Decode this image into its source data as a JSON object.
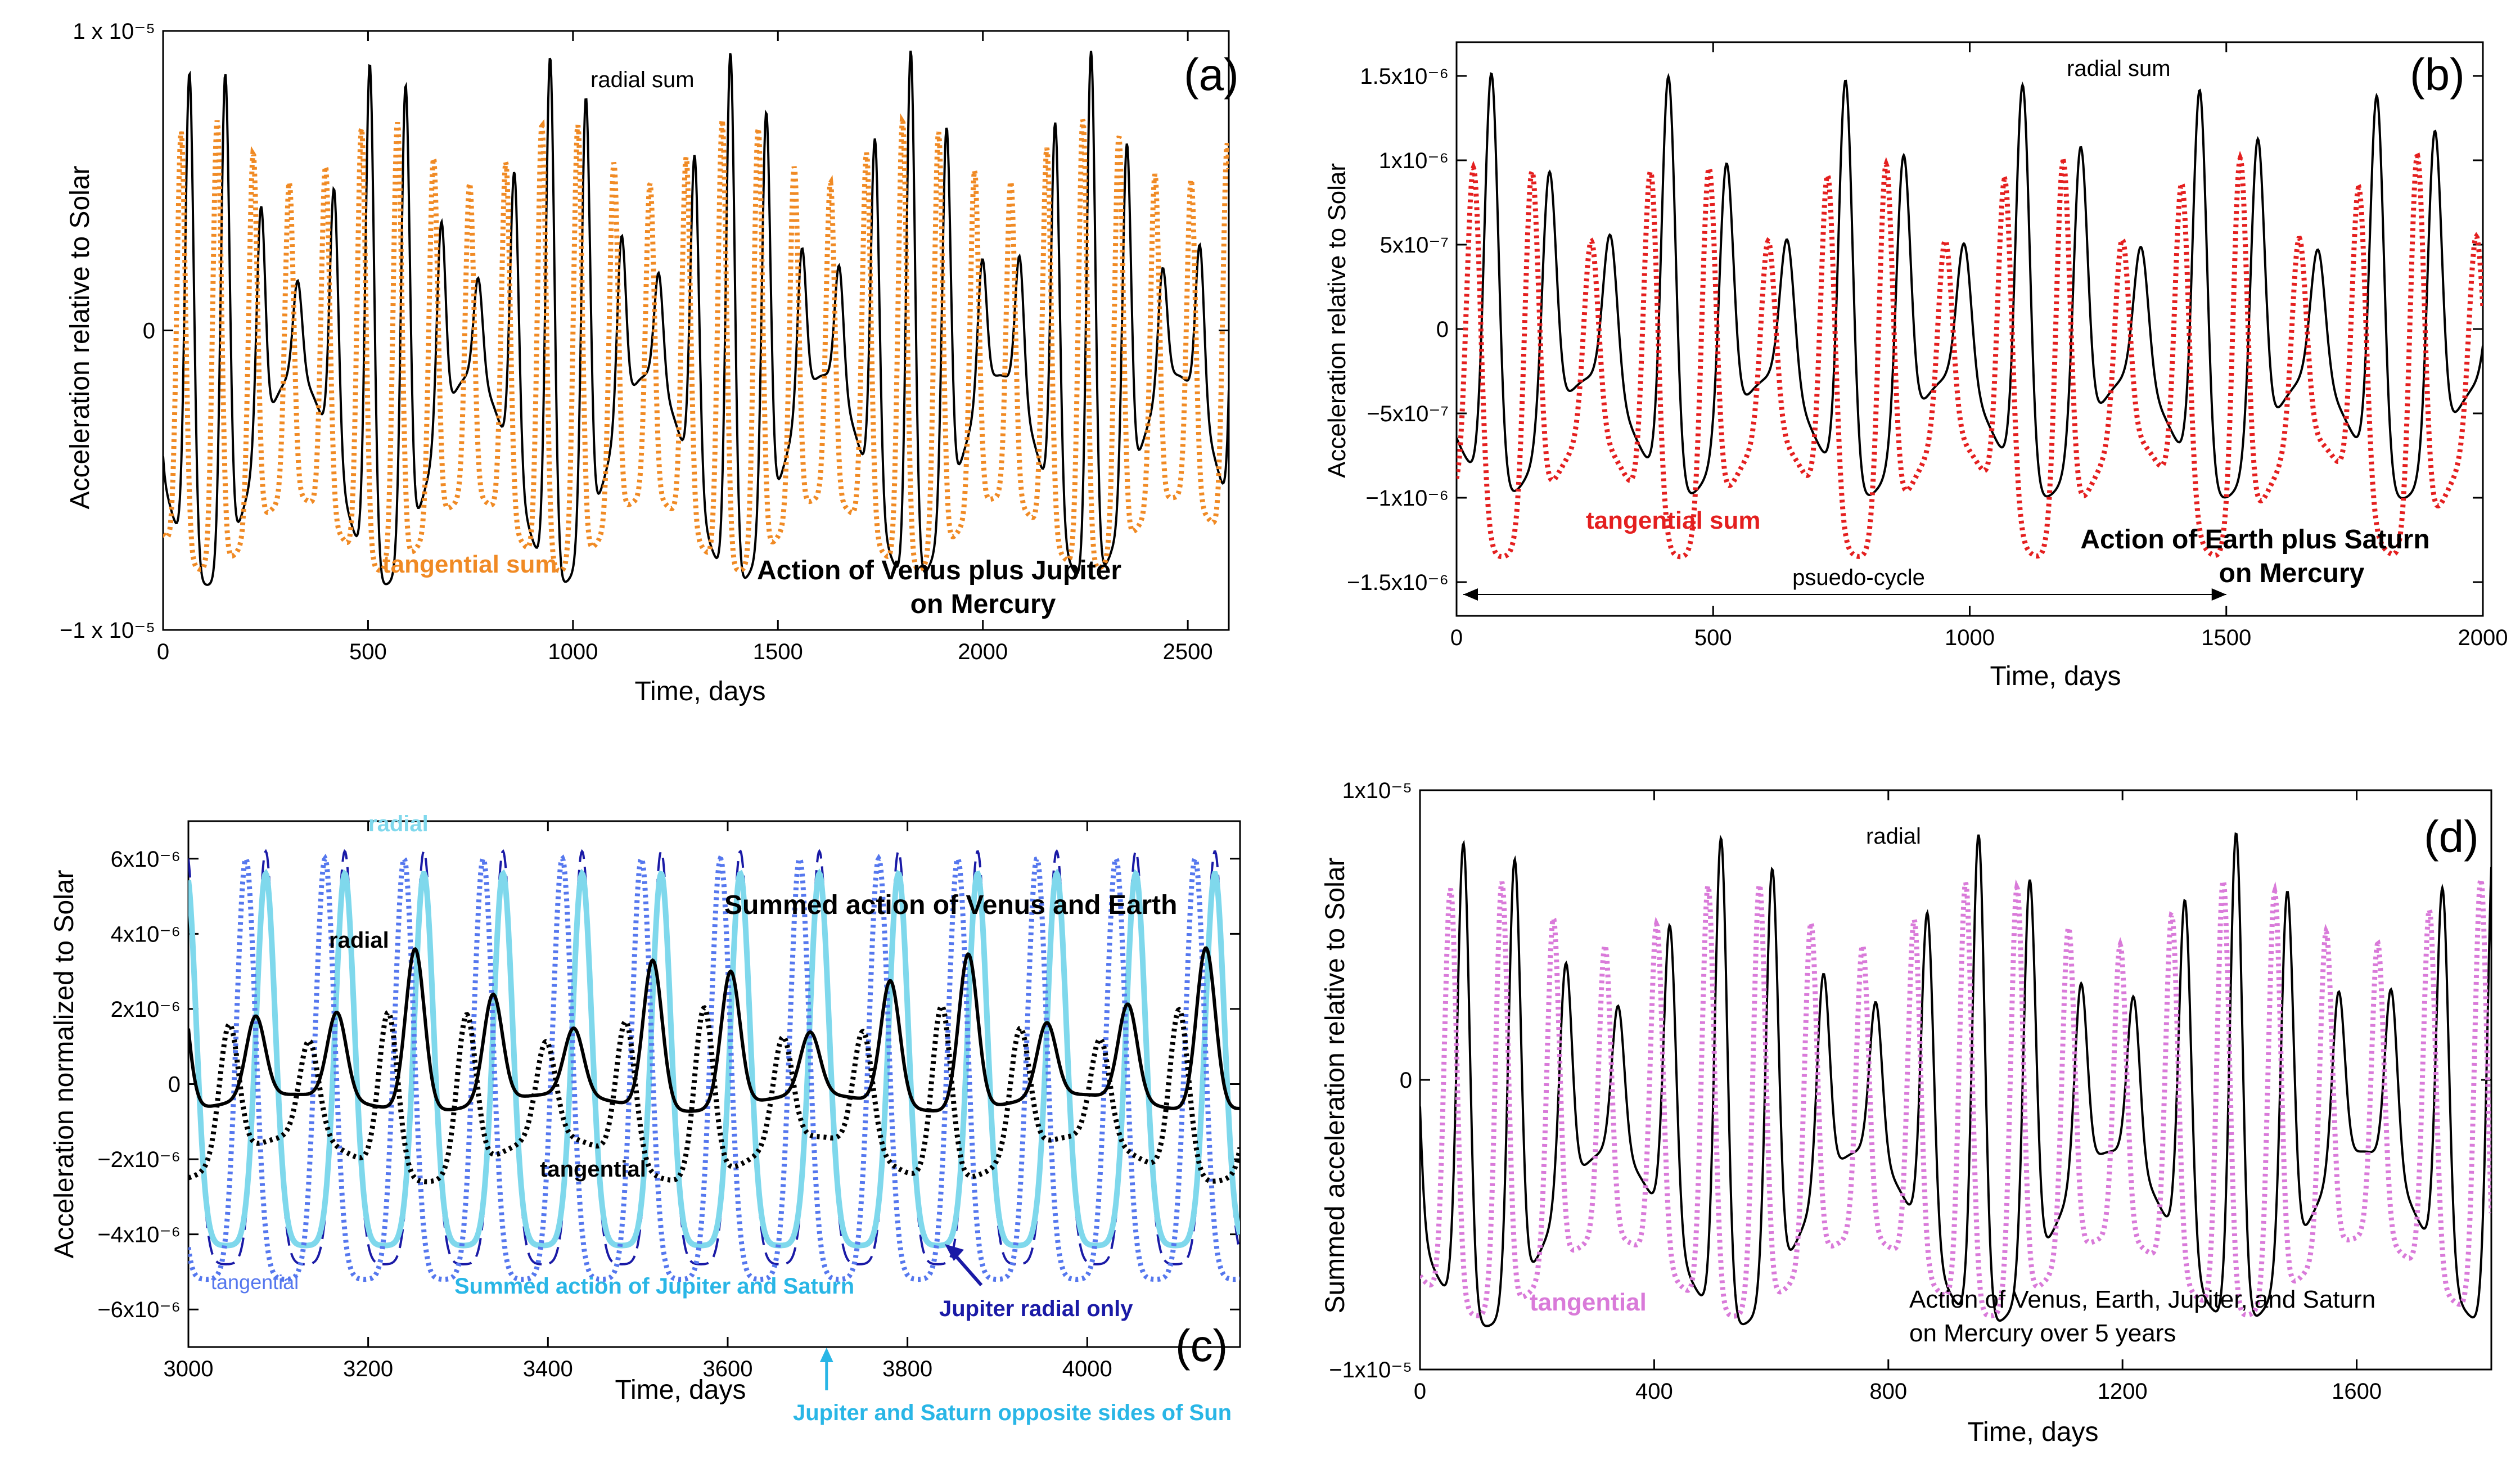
{
  "chart_data": [
    {
      "id": "a",
      "type": "line",
      "panel_label": "(a)",
      "title": "Action of Venus plus Jupiter",
      "title_line2": "on Mercury",
      "xlabel": "Time, days",
      "ylabel": "Acceleration relative to Solar",
      "xlim": [
        0,
        2600
      ],
      "ylim": [
        -1e-05,
        1e-05
      ],
      "xticks": [
        0,
        500,
        1000,
        1500,
        2000,
        2500
      ],
      "xtick_labels": [
        "0",
        "500",
        "1000",
        "1500",
        "2000",
        "2500"
      ],
      "yticks": [
        -1e-05,
        0,
        1e-05
      ],
      "ytick_labels": [
        "−1 x 10⁻⁵",
        "0",
        "1 x 10⁻⁵"
      ],
      "series": [
        {
          "name": "radial sum",
          "label": "radial sum",
          "style": "solid",
          "color": "#000000",
          "period": 88,
          "phase": 20,
          "peak": 5.5e-06,
          "trough": -5e-06,
          "env_period": 430,
          "env_amp": 0.7
        },
        {
          "name": "tangential sum",
          "label": "tangential sum",
          "style": "dotted",
          "color": "#f08a24",
          "period": 88,
          "phase": 0,
          "peak": 6e-06,
          "trough": -6.8e-06,
          "env_period": 430,
          "env_amp": 0.18
        }
      ]
    },
    {
      "id": "b",
      "type": "line",
      "panel_label": "(b)",
      "title": "Action of Earth plus Saturn",
      "title_line2": "on Mercury",
      "annotation": "psuedo-cycle",
      "annotation_range": [
        0,
        1500
      ],
      "xlabel": "Time, days",
      "ylabel": "Acceleration relative to Solar",
      "xlim": [
        0,
        2000
      ],
      "ylim": [
        -1.7e-06,
        1.7e-06
      ],
      "xticks": [
        0,
        500,
        1000,
        1500,
        2000
      ],
      "xtick_labels": [
        "0",
        "500",
        "1000",
        "1500",
        "2000"
      ],
      "yticks": [
        -1.5e-06,
        -1e-06,
        -5e-07,
        0,
        5e-07,
        1e-06,
        1.5e-06
      ],
      "ytick_labels": [
        "−1.5x10⁻⁶",
        "−1x10⁻⁶",
        "−5x10⁻⁷",
        "0",
        "5x10⁻⁷",
        "1x10⁻⁶",
        "1.5x10⁻⁶"
      ],
      "series": [
        {
          "name": "radial sum",
          "label": "radial sum",
          "style": "solid",
          "color": "#000000",
          "period": 115,
          "phase": 10,
          "peak": 1e-06,
          "trough": -6.5e-07,
          "env_period": 350,
          "env_amp": 0.55
        },
        {
          "name": "tangential sum",
          "label": "tangential sum",
          "style": "dotted",
          "color": "#e41f1f",
          "period": 115,
          "phase": -25,
          "peak": 8e-07,
          "trough": -1e-06,
          "env_period": 350,
          "env_amp": 0.35
        }
      ]
    },
    {
      "id": "c",
      "type": "line",
      "panel_label": "(c)",
      "title": "Summed action of Venus and Earth",
      "title2": "Summed action of Jupiter and Saturn",
      "annotation_jupiter": "Jupiter radial only",
      "annotation_opposite": "Jupiter and Saturn opposite sides of Sun",
      "annotation_opposite_x": 3710,
      "xlabel": "Time, days",
      "ylabel": "Acceleration normalized to Solar",
      "xlim": [
        3000,
        4170
      ],
      "ylim": [
        -7e-06,
        7e-06
      ],
      "xticks": [
        3000,
        3200,
        3400,
        3600,
        3800,
        4000
      ],
      "xtick_labels": [
        "3000",
        "3200",
        "3400",
        "3600",
        "3800",
        "4000"
      ],
      "yticks": [
        -6e-06,
        -4e-06,
        -2e-06,
        0,
        2e-06,
        4e-06,
        6e-06
      ],
      "ytick_labels": [
        "−6x10⁻⁶",
        "−4x10⁻⁶",
        "−2x10⁻⁶",
        "0",
        "2x10⁻⁶",
        "4x10⁻⁶",
        "6x10⁻⁶"
      ],
      "series": [
        {
          "name": "Jupiter radial only",
          "label": "Jupiter radial only",
          "style": "dashed",
          "color": "#1a1aa6",
          "period": 88,
          "phase": 50,
          "peak": 6.2e-06,
          "trough": -4.8e-06,
          "env_period": 0,
          "env_amp": 0
        },
        {
          "name": "radial (Jupiter+Saturn)",
          "label": "radial",
          "style": "solid",
          "color": "#7fd8ec",
          "period": 88,
          "phase": 50,
          "peak": 5.6e-06,
          "trough": -4.3e-06,
          "env_period": 0,
          "env_amp": 0
        },
        {
          "name": "tangential (Jupiter+Saturn)",
          "label": "tangential",
          "style": "dotted",
          "color": "#5577ee",
          "period": 88,
          "phase": 28,
          "peak": 6e-06,
          "trough": -5.2e-06,
          "env_period": 0,
          "env_amp": 0
        },
        {
          "name": "radial (Venus+Earth)",
          "label": "radial",
          "style": "solid",
          "color": "#000000",
          "period": 88,
          "phase": 40,
          "peak": 2.5e-06,
          "trough": -5e-07,
          "env_period": 290,
          "env_amp": 0.45
        },
        {
          "name": "tangential (Venus+Earth)",
          "label": "tangential",
          "style": "dotted",
          "color": "#000000",
          "period": 88,
          "phase": 10,
          "peak": 1.6e-06,
          "trough": -2e-06,
          "env_period": 290,
          "env_amp": 0.3
        }
      ]
    },
    {
      "id": "d",
      "type": "line",
      "panel_label": "(d)",
      "title": "Action of Venus, Earth, Jupiter, and Saturn",
      "title_line2": "on Mercury over 5 years",
      "xlabel": "Time, days",
      "ylabel": "Summed acceleration relative to Solar",
      "xlim": [
        0,
        1830
      ],
      "ylim": [
        -1e-05,
        1e-05
      ],
      "xticks": [
        0,
        400,
        800,
        1200,
        1600
      ],
      "xtick_labels": [
        "0",
        "400",
        "800",
        "1200",
        "1600"
      ],
      "yticks": [
        -1e-05,
        0,
        1e-05
      ],
      "ytick_labels": [
        "−1x10⁻⁵",
        "0",
        "1x10⁻⁵"
      ],
      "series": [
        {
          "name": "radial",
          "label": "radial",
          "style": "solid",
          "color": "#000000",
          "period": 88,
          "phase": 30,
          "peak": 5.5e-06,
          "trough": -5.5e-06,
          "env_period": 430,
          "env_amp": 0.55
        },
        {
          "name": "tangential",
          "label": "tangential",
          "style": "dotted",
          "color": "#d97ad9",
          "period": 88,
          "phase": 8,
          "peak": 5.8e-06,
          "trough": -6.8e-06,
          "env_period": 430,
          "env_amp": 0.2
        }
      ]
    }
  ]
}
